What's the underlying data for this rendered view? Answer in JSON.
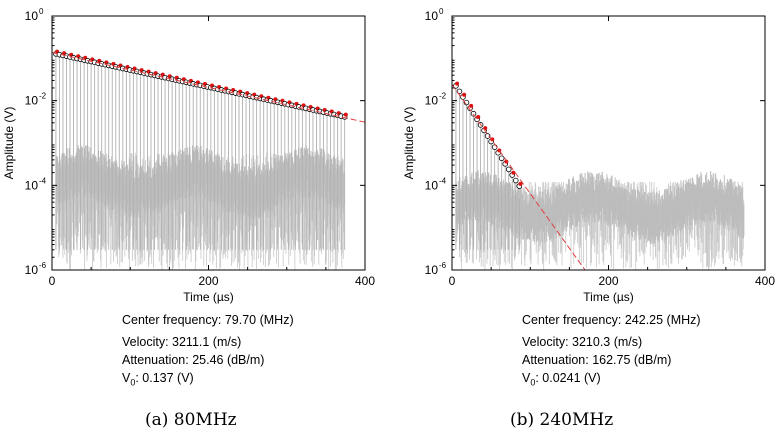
{
  "chart_data": [
    {
      "type": "scatter",
      "title": "",
      "caption": "(a) 80MHz",
      "xlabel": "Time (µs)",
      "ylabel": "Amplitude (V)",
      "xlim": [
        0,
        400
      ],
      "ylim": [
        1e-06,
        1
      ],
      "y_scale": "log",
      "x_ticks": [
        "0",
        "200",
        "400"
      ],
      "y_ticks": [
        {
          "base": "10",
          "exp": "0",
          "value": 1
        },
        {
          "base": "10",
          "exp": "-2",
          "value": 0.01
        },
        {
          "base": "10",
          "exp": "-4",
          "value": 0.0001
        },
        {
          "base": "10",
          "exp": "-6",
          "value": 1e-06
        }
      ],
      "grid": false,
      "info": {
        "center_frequency": "Center frequency: 79.70 (MHz)",
        "velocity": "Velocity: 3211.1 (m/s)",
        "attenuation": "Attenuation: 25.46 (dB/m)",
        "v0_main": "V",
        "v0_sub": "0",
        "v0_value": ": 0.137 (V)"
      },
      "echo_peaks": {
        "t_start": 5,
        "t_end": 373,
        "spacing": 4.5,
        "fit_start": 0.137,
        "fit_end": 0.0045
      },
      "noise_floor": {
        "t_start": 5,
        "t_end": 373,
        "level": 0.00012,
        "low": 1e-06,
        "high": 0.0012
      },
      "fit_line": {
        "x": [
          0,
          400
        ],
        "y": [
          0.137,
          0.0031
        ],
        "color": "#e04040"
      },
      "colors": {
        "signal": "#c8c8c8",
        "markers_open": "#000000",
        "markers_filled": "#dd1111",
        "fit": "#e04040"
      }
    },
    {
      "type": "scatter",
      "title": "",
      "caption": "(b) 240MHz",
      "xlabel": "Time (µs)",
      "ylabel": "Amplitude (V)",
      "xlim": [
        0,
        400
      ],
      "ylim": [
        1e-06,
        1
      ],
      "y_scale": "log",
      "x_ticks": [
        "0",
        "200",
        "400"
      ],
      "y_ticks": [
        {
          "base": "10",
          "exp": "0",
          "value": 1
        },
        {
          "base": "10",
          "exp": "-2",
          "value": 0.01
        },
        {
          "base": "10",
          "exp": "-4",
          "value": 0.0001
        },
        {
          "base": "10",
          "exp": "-6",
          "value": 1e-06
        }
      ],
      "grid": false,
      "info": {
        "center_frequency": "Center frequency: 242.25 (MHz)",
        "velocity": "Velocity: 3210.3 (m/s)",
        "attenuation": "Attenuation: 162.75 (dB/m)",
        "v0_main": "V",
        "v0_sub": "0",
        "v0_value": ": 0.0241 (V)"
      },
      "echo_peaks": {
        "t_start": 5,
        "t_end": 88,
        "spacing": 4.5,
        "fit_start": 0.0241,
        "fit_end": 9e-05
      },
      "noise_floor": {
        "t_start": 5,
        "t_end": 373,
        "level": 3e-05,
        "low": 1e-06,
        "high": 0.00012
      },
      "fit_line": {
        "x": [
          0,
          170
        ],
        "y": [
          0.0241,
          1e-06
        ],
        "color": "#e04040"
      },
      "colors": {
        "signal": "#c8c8c8",
        "markers_open": "#000000",
        "markers_filled": "#dd1111",
        "fit": "#e04040"
      }
    }
  ]
}
